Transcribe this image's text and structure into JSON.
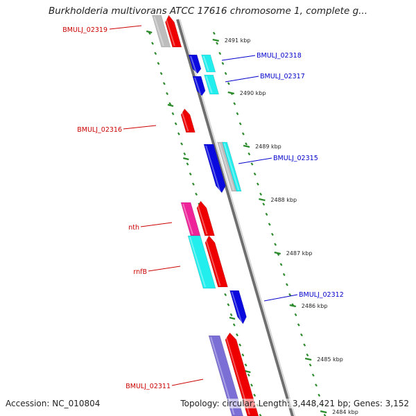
{
  "title": "Burkholderia multivorans ATCC 17616 chromosome 1, complete g...",
  "footer": {
    "accession": "Accession: NC_010804",
    "summary": "Topology: circular; Length: 3,448,421 bp; Genes: 3,152"
  },
  "colors": {
    "red": "#ee0000",
    "blue": "#0a0ade",
    "cyan": "#22eeee",
    "pink": "#ee2299",
    "purple": "#7b6fd6",
    "grey": "#bdbdbd",
    "backbone": "#8a8a8a",
    "ruler": "#2a8a2a",
    "left_label": "#cc0000",
    "right_label": "#0000cc"
  },
  "scale_ticks": [
    {
      "text": "2491 kbp"
    },
    {
      "text": "2490 kbp"
    },
    {
      "text": "2489 kbp"
    },
    {
      "text": "2488 kbp"
    },
    {
      "text": "2487 kbp"
    },
    {
      "text": "2486 kbp"
    },
    {
      "text": "2485 kbp"
    },
    {
      "text": "2484 kbp"
    }
  ],
  "genes": [
    {
      "name": "BMULJ_02319",
      "strand": "left"
    },
    {
      "name": "BMULJ_02318",
      "strand": "right"
    },
    {
      "name": "BMULJ_02317",
      "strand": "right"
    },
    {
      "name": "BMULJ_02316",
      "strand": "left"
    },
    {
      "name": "BMULJ_02315",
      "strand": "right"
    },
    {
      "name": "nth",
      "strand": "left"
    },
    {
      "name": "rnfB",
      "strand": "left"
    },
    {
      "name": "BMULJ_02312",
      "strand": "right"
    },
    {
      "name": "BMULJ_02311",
      "strand": "left"
    }
  ]
}
